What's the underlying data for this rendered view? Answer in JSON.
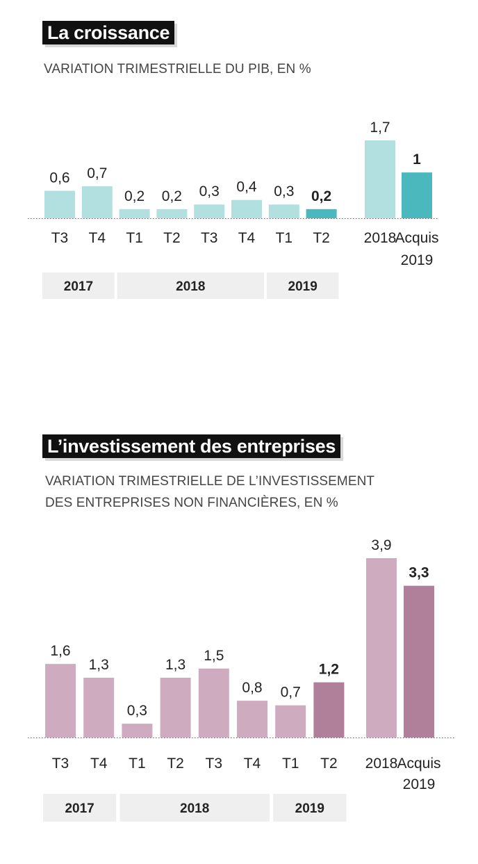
{
  "chart_data": [
    {
      "type": "bar",
      "title": "La croissance",
      "subtitle": "VARIATION TRIMESTRIELLE DU PIB, EN %",
      "categories": [
        "T3",
        "T4",
        "T1",
        "T2",
        "T3",
        "T4",
        "T1",
        "T2"
      ],
      "values": [
        0.6,
        0.7,
        0.2,
        0.2,
        0.3,
        0.4,
        0.3,
        0.2
      ],
      "value_labels": [
        "0,6",
        "0,7",
        "0,2",
        "0,2",
        "0,3",
        "0,4",
        "0,3",
        "0,2"
      ],
      "years": [
        {
          "label": "2017",
          "span": [
            0,
            1
          ]
        },
        {
          "label": "2018",
          "span": [
            2,
            5
          ]
        },
        {
          "label": "2019",
          "span": [
            6,
            7
          ]
        }
      ],
      "annual": [
        {
          "label": "2018",
          "value": 1.7,
          "value_label": "1,7"
        },
        {
          "label_lines": [
            "Acquis",
            "2019"
          ],
          "value": 1,
          "value_label": "1"
        }
      ],
      "highlight_index": 7,
      "ylim": [
        0,
        1.7
      ],
      "colors": {
        "bar": "#b2dfdf",
        "highlight": "#4ab8bd"
      }
    },
    {
      "type": "bar",
      "title": "L’investissement des entreprises",
      "subtitle_lines": [
        "VARIATION TRIMESTRIELLE DE L’INVESTISSEMENT",
        "DES ENTREPRISES NON FINANCIÈRES, EN %"
      ],
      "categories": [
        "T3",
        "T4",
        "T1",
        "T2",
        "T3",
        "T4",
        "T1",
        "T2"
      ],
      "values": [
        1.6,
        1.3,
        0.3,
        1.3,
        1.5,
        0.8,
        0.7,
        1.2
      ],
      "value_labels": [
        "1,6",
        "1,3",
        "0,3",
        "1,3",
        "1,5",
        "0,8",
        "0,7",
        "1,2"
      ],
      "years": [
        {
          "label": "2017",
          "span": [
            0,
            1
          ]
        },
        {
          "label": "2018",
          "span": [
            2,
            5
          ]
        },
        {
          "label": "2019",
          "span": [
            6,
            7
          ]
        }
      ],
      "annual": [
        {
          "label": "2018",
          "value": 3.9,
          "value_label": "3,9"
        },
        {
          "label_lines": [
            "Acquis",
            "2019"
          ],
          "value": 3.3,
          "value_label": "3,3"
        }
      ],
      "highlight_index": 7,
      "ylim": [
        0,
        3.9
      ],
      "colors": {
        "bar": "#cfabbf",
        "highlight": "#b07f99"
      }
    }
  ]
}
